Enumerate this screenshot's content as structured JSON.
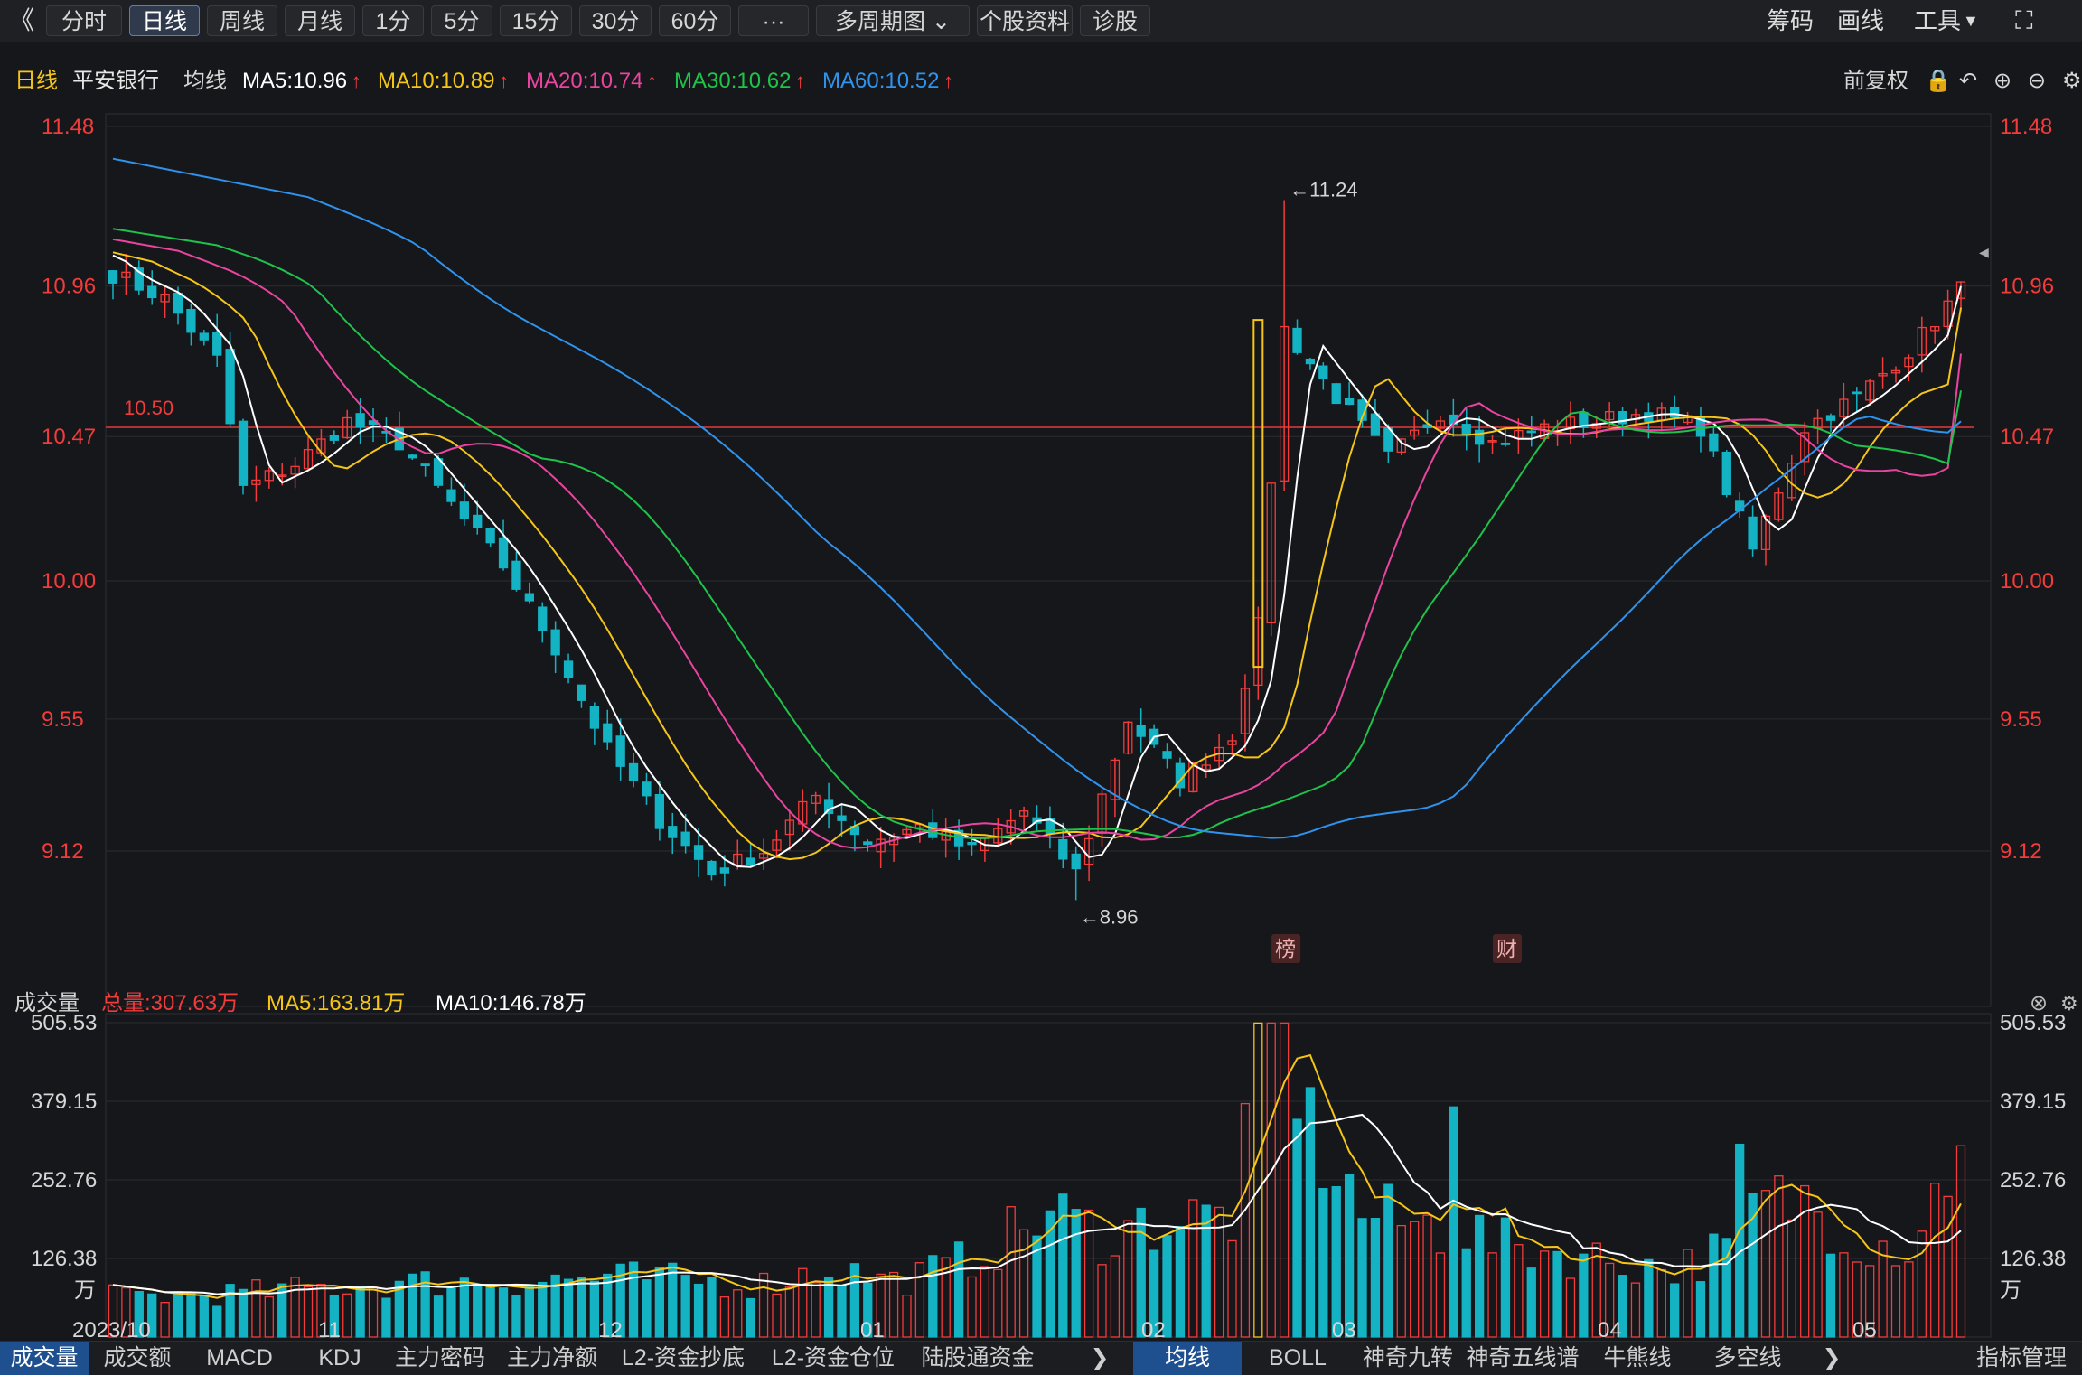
{
  "toolbar": {
    "back_icon": "double-chevron-left",
    "items": [
      {
        "label": "分时",
        "active": false
      },
      {
        "label": "日线",
        "active": true
      },
      {
        "label": "周线",
        "active": false
      },
      {
        "label": "月线",
        "active": false
      },
      {
        "label": "1分",
        "active": false
      },
      {
        "label": "5分",
        "active": false
      },
      {
        "label": "15分",
        "active": false
      },
      {
        "label": "30分",
        "active": false
      },
      {
        "label": "60分",
        "active": false
      },
      {
        "label": "···",
        "active": false
      },
      {
        "label": "多周期图",
        "active": false
      },
      {
        "label": "个股资料",
        "active": false
      },
      {
        "label": "诊股",
        "active": false
      }
    ],
    "right": {
      "chips": "筹码",
      "draw": "画线",
      "tools": "工具",
      "fullscreen_icon": "expand-icon"
    }
  },
  "main": {
    "period": "日线",
    "stock": "平安银行",
    "ma_title": "均线",
    "legend": [
      {
        "text": "MA5:10.96",
        "color": "#ffffff"
      },
      {
        "text": "MA10:10.89",
        "color": "#f5c518"
      },
      {
        "text": "MA20:10.74",
        "color": "#e9449f"
      },
      {
        "text": "MA30:10.62",
        "color": "#1fc24a"
      },
      {
        "text": "MA60:10.52",
        "color": "#2f93ee"
      }
    ],
    "right_controls": {
      "label": "前复权",
      "icons": [
        "lock-icon",
        "undo-icon",
        "zoom-in-icon",
        "zoom-out-icon",
        "settings-icon"
      ]
    },
    "y_ticks": [
      "11.48",
      "10.96",
      "10.47",
      "10.00",
      "9.55",
      "9.12"
    ],
    "price_line": "10.50",
    "high_mark": "←11.24",
    "low_mark": "←8.96",
    "event_tags": [
      "榜",
      "财"
    ]
  },
  "volume": {
    "title": "成交量",
    "total": "总量:307.63万",
    "ma5": "MA5:163.81万",
    "ma10": "MA10:146.78万",
    "y_ticks": [
      "505.53",
      "379.15",
      "252.76",
      "126.38"
    ],
    "unit": "万"
  },
  "x_labels": [
    "2023/10",
    "11",
    "12",
    "01",
    "02",
    "03",
    "04",
    "05"
  ],
  "bottom_tabs_left": [
    "成交量",
    "成交额",
    "MACD",
    "KDJ",
    "主力密码",
    "主力净额",
    "L2-资金抄底",
    "L2-资金仓位",
    "陆股通资金"
  ],
  "bottom_tabs_right": [
    "均线",
    "BOLL",
    "神奇九转",
    "神奇五线谱",
    "牛熊线",
    "多空线"
  ],
  "bottom_right": "指标管理",
  "colors": {
    "up": "#f23b3b",
    "down": "#14b3c4",
    "grid": "#2b2c31",
    "bg": "#16171b"
  },
  "chart_data": {
    "type": "candlestick",
    "title": "平安银行 日线",
    "ylim": [
      8.87,
      11.57
    ],
    "x_range": [
      "2023/10",
      "05"
    ],
    "price_keypoints": [
      [
        0,
        11.0
      ],
      [
        4,
        10.92
      ],
      [
        8,
        10.72
      ],
      [
        10,
        10.3
      ],
      [
        14,
        10.38
      ],
      [
        18,
        10.52
      ],
      [
        22,
        10.45
      ],
      [
        26,
        10.25
      ],
      [
        30,
        10.05
      ],
      [
        34,
        9.78
      ],
      [
        38,
        9.45
      ],
      [
        42,
        9.22
      ],
      [
        46,
        9.05
      ],
      [
        50,
        9.12
      ],
      [
        54,
        9.3
      ],
      [
        58,
        9.15
      ],
      [
        62,
        9.2
      ],
      [
        66,
        9.12
      ],
      [
        70,
        9.25
      ],
      [
        74,
        9.05
      ],
      [
        78,
        9.55
      ],
      [
        82,
        9.35
      ],
      [
        86,
        9.5
      ],
      [
        88,
        9.85
      ],
      [
        90,
        10.82
      ],
      [
        94,
        10.6
      ],
      [
        98,
        10.4
      ],
      [
        102,
        10.55
      ],
      [
        106,
        10.45
      ],
      [
        110,
        10.5
      ],
      [
        114,
        10.52
      ],
      [
        118,
        10.55
      ],
      [
        122,
        10.5
      ],
      [
        126,
        10.1
      ],
      [
        130,
        10.5
      ],
      [
        134,
        10.6
      ],
      [
        138,
        10.75
      ],
      [
        142,
        10.95
      ]
    ],
    "ma_last": {
      "MA5": 10.96,
      "MA10": 10.89,
      "MA20": 10.74,
      "MA30": 10.62,
      "MA60": 10.52
    },
    "ma_start": {
      "MA5": 11.08,
      "MA10": 11.1,
      "MA20": 11.15,
      "MA30": 11.2,
      "MA60": 11.5
    },
    "ma_lows": {
      "MA5": 9.12,
      "MA10": 9.12,
      "MA20": 9.18,
      "MA30": 9.22,
      "MA60": 9.42
    },
    "high": 11.24,
    "low": 8.96,
    "reference_line": 10.5,
    "volume": {
      "unit": "万",
      "ylim": [
        0,
        505.53
      ],
      "keypoints": [
        [
          0,
          65
        ],
        [
          10,
          70
        ],
        [
          20,
          85
        ],
        [
          30,
          90
        ],
        [
          40,
          95
        ],
        [
          50,
          85
        ],
        [
          55,
          110
        ],
        [
          60,
          90
        ],
        [
          64,
          110
        ],
        [
          68,
          150
        ],
        [
          72,
          200
        ],
        [
          76,
          165
        ],
        [
          80,
          185
        ],
        [
          86,
          195
        ],
        [
          89,
          505
        ],
        [
          91,
          350
        ],
        [
          93,
          300
        ],
        [
          96,
          200
        ],
        [
          100,
          180
        ],
        [
          104,
          175
        ],
        [
          106,
          150
        ],
        [
          110,
          140
        ],
        [
          116,
          120
        ],
        [
          120,
          110
        ],
        [
          124,
          140
        ],
        [
          126,
          210
        ],
        [
          130,
          220
        ],
        [
          134,
          160
        ],
        [
          138,
          145
        ],
        [
          142,
          307.63
        ]
      ],
      "spikes": [
        [
          89,
          505
        ],
        [
          90,
          505
        ],
        [
          91,
          350
        ],
        [
          103,
          370
        ],
        [
          125,
          310
        ],
        [
          142,
          307.63
        ]
      ]
    }
  }
}
